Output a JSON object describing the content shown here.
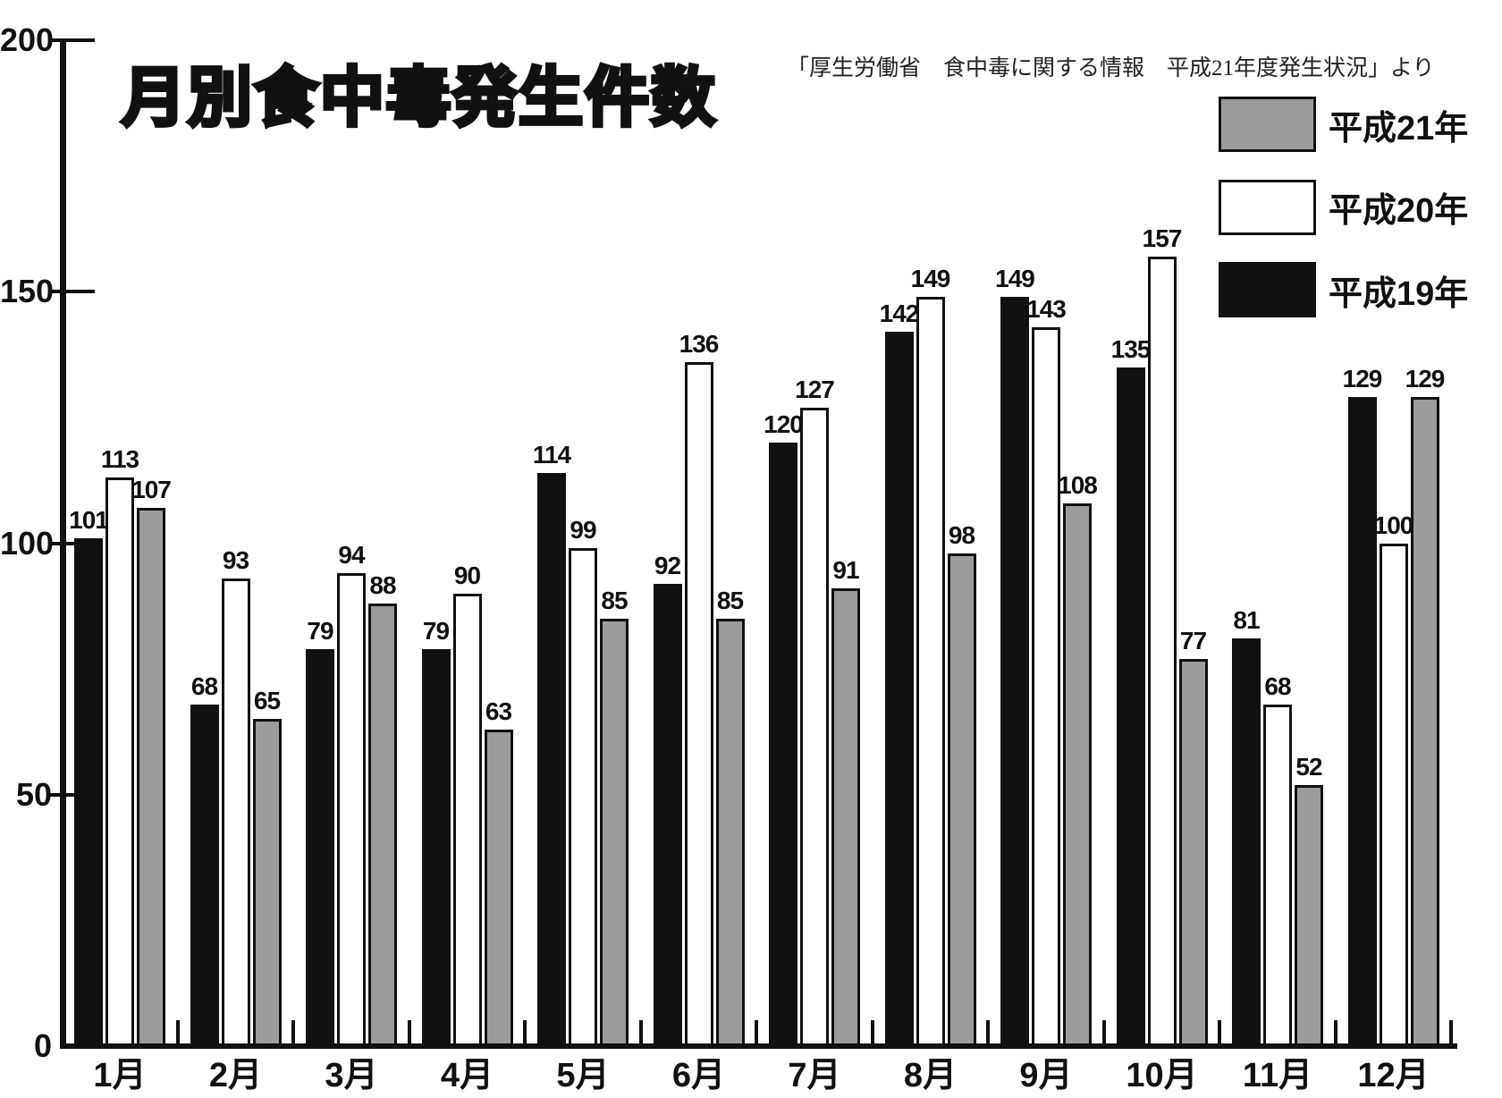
{
  "chart_data": {
    "type": "bar",
    "title": "月別食中毒発生件数",
    "source": "「厚生労働省　食中毒に関する情報　平成21年度発生状況」より",
    "categories": [
      "1月",
      "2月",
      "3月",
      "4月",
      "5月",
      "6月",
      "7月",
      "8月",
      "9月",
      "10月",
      "11月",
      "12月"
    ],
    "series": [
      {
        "name": "平成19年",
        "color": "#111111",
        "values": [
          101,
          68,
          79,
          79,
          114,
          92,
          120,
          142,
          149,
          135,
          81,
          129
        ]
      },
      {
        "name": "平成20年",
        "color": "#ffffff",
        "values": [
          113,
          93,
          94,
          90,
          99,
          136,
          127,
          149,
          143,
          157,
          68,
          100
        ]
      },
      {
        "name": "平成21年",
        "color": "#9c9c9c",
        "values": [
          107,
          65,
          88,
          63,
          85,
          85,
          91,
          98,
          108,
          77,
          52,
          129
        ]
      }
    ],
    "legend": [
      {
        "label": "平成21年",
        "color": "#9c9c9c"
      },
      {
        "label": "平成20年",
        "color": "#ffffff"
      },
      {
        "label": "平成19年",
        "color": "#111111"
      }
    ],
    "xlabel": "",
    "ylabel": "",
    "y_axis": {
      "ticks": [
        0,
        50,
        100,
        150,
        200
      ]
    },
    "ylim": [
      0,
      200
    ],
    "grid": false,
    "legend_position": "top-right",
    "bar_labels_shown": true
  }
}
